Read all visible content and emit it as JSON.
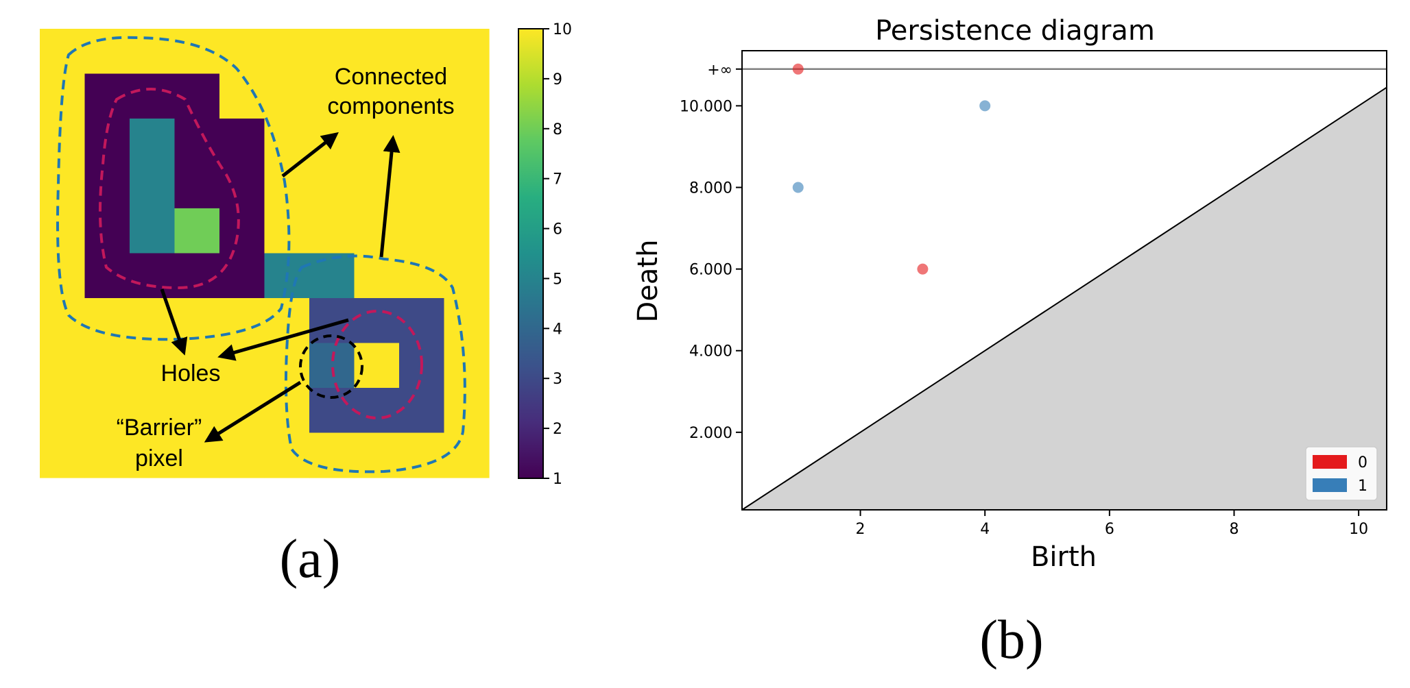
{
  "chart_data": [
    {
      "type": "heatmap",
      "panel_label": "(a)",
      "grid_size": [
        10,
        10
      ],
      "cells": [
        [
          10,
          10,
          10,
          10,
          10,
          10,
          10,
          10,
          10,
          10
        ],
        [
          10,
          1,
          1,
          1,
          10,
          10,
          10,
          10,
          10,
          10
        ],
        [
          10,
          1,
          5,
          1,
          1,
          10,
          10,
          10,
          10,
          10
        ],
        [
          10,
          1,
          5,
          1,
          1,
          10,
          10,
          10,
          10,
          10
        ],
        [
          10,
          1,
          5,
          8,
          1,
          10,
          10,
          10,
          10,
          10
        ],
        [
          10,
          1,
          1,
          1,
          1,
          5,
          5,
          10,
          10,
          10
        ],
        [
          10,
          10,
          10,
          10,
          10,
          10,
          3,
          3,
          3,
          10
        ],
        [
          10,
          10,
          10,
          10,
          10,
          10,
          4,
          10,
          3,
          10
        ],
        [
          10,
          10,
          10,
          10,
          10,
          10,
          3,
          3,
          3,
          10
        ],
        [
          10,
          10,
          10,
          10,
          10,
          10,
          10,
          10,
          10,
          10
        ]
      ],
      "colorbar": {
        "min": 1,
        "max": 10,
        "ticks": [
          "1",
          "2",
          "3",
          "4",
          "5",
          "6",
          "7",
          "8",
          "9",
          "10"
        ]
      },
      "annotations": {
        "components_line1": "Connected",
        "components_line2": "components",
        "holes": "Holes",
        "barrier_line1": "“Barrier”",
        "barrier_line2": "pixel"
      },
      "colors": {
        "component_outline": "#1f77b4",
        "hole_outline": "#c2185b",
        "barrier_outline": "#000000"
      }
    },
    {
      "type": "scatter",
      "panel_label": "(b)",
      "title": "Persistence diagram",
      "xlabel": "Birth",
      "ylabel": "Death",
      "xlim": [
        0.1,
        10.45
      ],
      "ylim": [
        0.1,
        11.35
      ],
      "x_ticks": [
        2,
        4,
        6,
        8,
        10
      ],
      "y_ticks": [
        {
          "value": 2,
          "label": "2.000"
        },
        {
          "value": 4,
          "label": "4.000"
        },
        {
          "value": 6,
          "label": "6.000"
        },
        {
          "value": 8,
          "label": "8.000"
        },
        {
          "value": 10,
          "label": "10.000"
        }
      ],
      "infinity": {
        "value": 10.9,
        "label": "+∞"
      },
      "series": [
        {
          "name": "0",
          "color": "#e41a1c",
          "points": [
            [
              1,
              "inf"
            ],
            [
              3,
              6
            ]
          ]
        },
        {
          "name": "1",
          "color": "#377eb8",
          "points": [
            [
              1,
              8
            ],
            [
              4,
              10
            ]
          ]
        }
      ],
      "legend": {
        "position": "bottom-right",
        "entries": [
          "0",
          "1"
        ]
      }
    }
  ]
}
